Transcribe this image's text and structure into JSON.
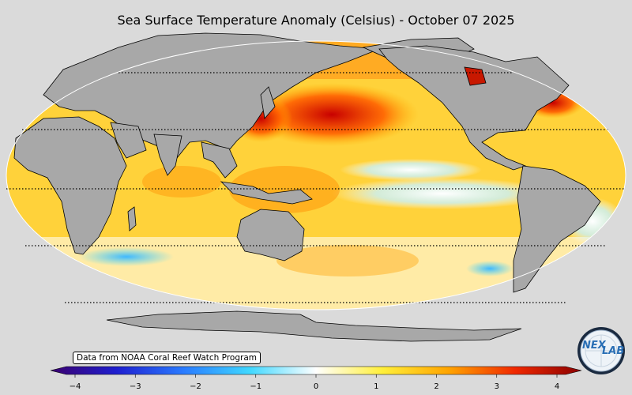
{
  "title": "Sea Surface Temperature Anomaly (Celsius) - October 07 2025",
  "credit": "Data from NOAA Coral Reef Watch Program",
  "colorbar": {
    "min": -4,
    "max": 4,
    "tick_labels": [
      "−4",
      "−3",
      "−2",
      "−1",
      "0",
      "1",
      "2",
      "3",
      "4"
    ],
    "tick_values": [
      -4,
      -3,
      -2,
      -1,
      0,
      1,
      2,
      3,
      4
    ],
    "colors": [
      "#3b006e",
      "#1f1fd0",
      "#2a7bff",
      "#40d8ff",
      "#ffffff",
      "#ffef3a",
      "#ffa400",
      "#f02800",
      "#8a0000"
    ]
  },
  "map": {
    "land_color": "#a8a8a8",
    "parallel_count": 5
  },
  "logo": {
    "part1": "NEX",
    "part2": "LAB"
  }
}
